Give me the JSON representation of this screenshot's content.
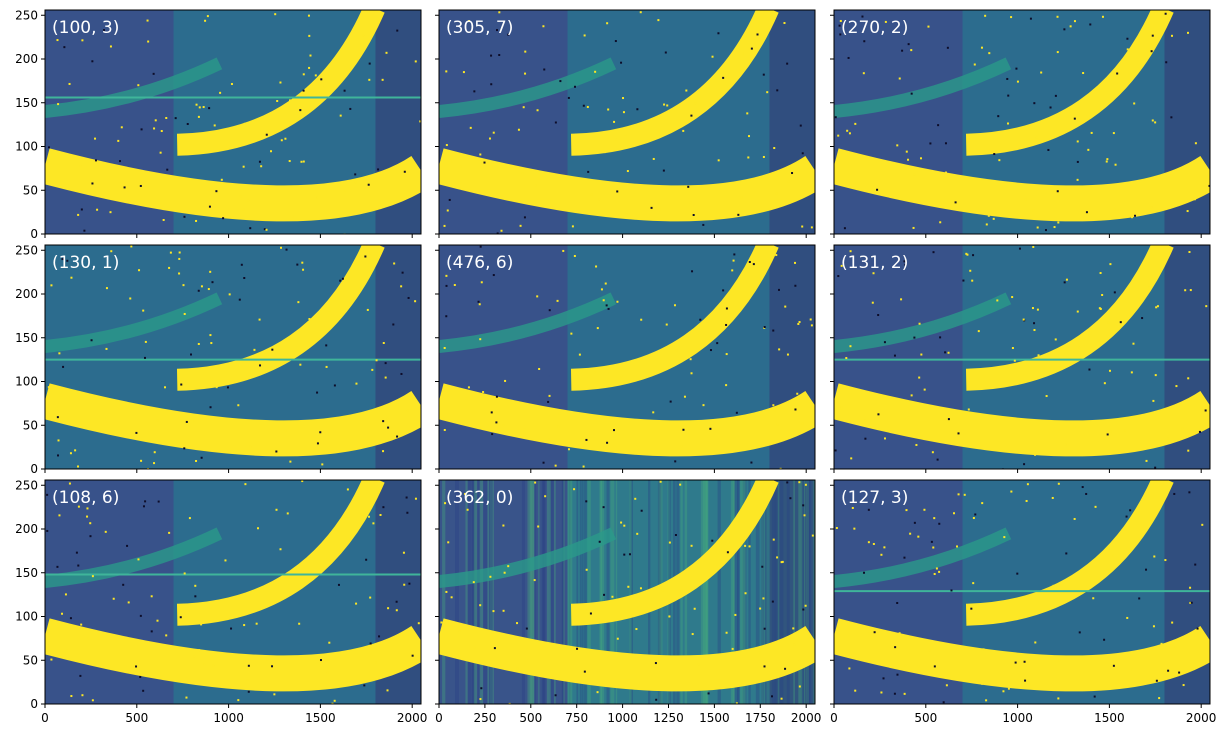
{
  "colors": {
    "background_low": "#3b4d8a",
    "background_dark": "#33306f",
    "background_mid": "#2c6c8e",
    "speckle_bright": "#fde725",
    "trace_bright": "#fde725",
    "trace_faint": "#2a9a8a",
    "axis": "#000000",
    "label_text": "#ffffff"
  },
  "colormap": "viridis",
  "axes": {
    "x_ticks": [
      "0",
      "500",
      "1000",
      "1500",
      "2000"
    ],
    "x_ticks_dense": [
      "0",
      "250",
      "500",
      "750",
      "1000",
      "1250",
      "1500",
      "1750",
      "2000"
    ],
    "y_ticks": [
      "0",
      "50",
      "100",
      "150",
      "200",
      "250"
    ],
    "xlim": [
      0,
      2048
    ],
    "ylim": [
      0,
      256
    ]
  },
  "grid": {
    "rows": 3,
    "cols": 3,
    "shared_x": true,
    "shared_y": true
  },
  "panels": [
    {
      "label": "(100, 3)",
      "stripe_y": 156,
      "left_dark": true,
      "noisy": false
    },
    {
      "label": "(305, 7)",
      "stripe_y": null,
      "left_dark": true,
      "noisy": false
    },
    {
      "label": "(270, 2)",
      "stripe_y": null,
      "left_dark": true,
      "noisy": false
    },
    {
      "label": "(130, 1)",
      "stripe_y": 125,
      "left_dark": false,
      "noisy": false
    },
    {
      "label": "(476, 6)",
      "stripe_y": null,
      "left_dark": true,
      "noisy": false
    },
    {
      "label": "(131, 2)",
      "stripe_y": 125,
      "left_dark": true,
      "noisy": false
    },
    {
      "label": "(108, 6)",
      "stripe_y": 148,
      "left_dark": true,
      "noisy": false
    },
    {
      "label": "(362, 0)",
      "stripe_y": null,
      "left_dark": true,
      "noisy": true
    },
    {
      "label": "(127, 3)",
      "stripe_y": 129,
      "left_dark": true,
      "noisy": false
    }
  ]
}
